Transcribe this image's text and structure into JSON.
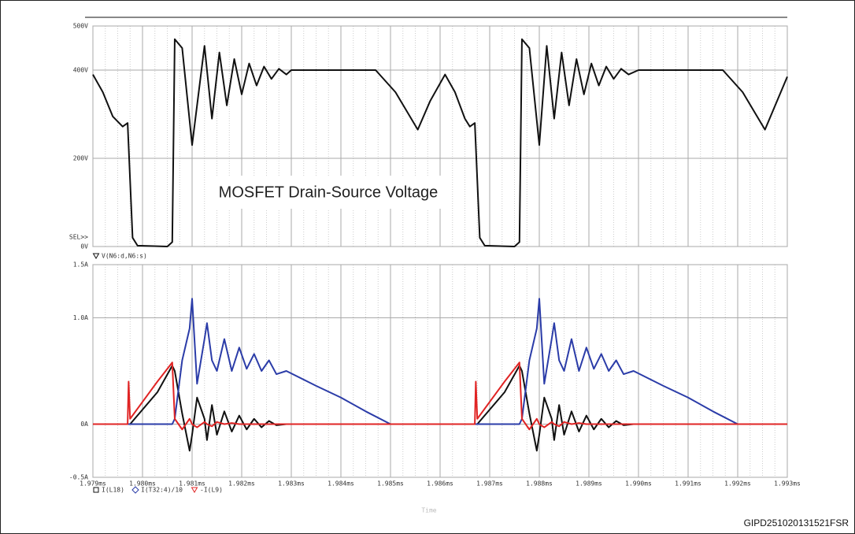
{
  "chart_data": [
    {
      "type": "line",
      "x": [
        1.979,
        1.9792,
        1.9794,
        1.9796,
        1.9797,
        1.97975,
        1.9798,
        1.9799,
        1.9805,
        1.9806,
        1.98065,
        1.9808,
        1.981,
        1.98125,
        1.9814,
        1.98155,
        1.9817,
        1.98185,
        1.982,
        1.98215,
        1.9823,
        1.98245,
        1.9826,
        1.98275,
        1.9829,
        1.983,
        1.9847,
        1.9851,
        1.98555,
        1.9858,
        1.9861,
        1.9863,
        1.9865,
        1.9866,
        1.9867,
        1.98675,
        1.9868,
        1.9869,
        1.9875,
        1.9876,
        1.98765,
        1.9878,
        1.988,
        1.98815,
        1.9883,
        1.98845,
        1.9886,
        1.98875,
        1.9889,
        1.98905,
        1.9892,
        1.98935,
        1.9895,
        1.98965,
        1.9898,
        1.99,
        1.9917,
        1.9921,
        1.99255,
        1.993
      ],
      "series": [
        {
          "name": "V(N6:d,N6:s)",
          "color": "#111111",
          "marker": "triangle",
          "values": [
            390,
            350,
            295,
            272,
            280,
            150,
            20,
            2,
            0,
            10,
            470,
            450,
            230,
            455,
            290,
            440,
            320,
            425,
            345,
            415,
            365,
            408,
            380,
            403,
            390,
            400,
            400,
            350,
            265,
            330,
            390,
            350,
            290,
            272,
            280,
            150,
            20,
            2,
            0,
            10,
            470,
            450,
            230,
            455,
            290,
            440,
            320,
            425,
            345,
            415,
            365,
            408,
            380,
            403,
            390,
            400,
            400,
            350,
            265,
            385
          ]
        }
      ],
      "xlim": [
        1.979,
        1.993
      ],
      "ylim": [
        0,
        500
      ],
      "yticks": [
        {
          "value": 0,
          "label": "0V"
        },
        {
          "value": 200,
          "label": "200V"
        },
        {
          "value": 400,
          "label": "400V"
        },
        {
          "value": 500,
          "label": "500V"
        }
      ],
      "grid": true,
      "annotation": "MOSFET  Drain-Source Voltage",
      "cursor_label": "SEL>>"
    },
    {
      "type": "line",
      "x": [
        1.979,
        1.9797,
        1.97972,
        1.97975,
        1.9803,
        1.9806,
        1.98065,
        1.9808,
        1.98095,
        1.981,
        1.9811,
        1.98125,
        1.9813,
        1.9814,
        1.9815,
        1.98165,
        1.9818,
        1.98195,
        1.9821,
        1.98225,
        1.9824,
        1.98255,
        1.9827,
        1.9829,
        1.9835,
        1.984,
        1.9845,
        1.985,
        1.986,
        1.9867,
        1.98672,
        1.98675,
        1.9873,
        1.9876,
        1.98765,
        1.9878,
        1.98795,
        1.988,
        1.9881,
        1.98825,
        1.9883,
        1.9884,
        1.9885,
        1.98865,
        1.9888,
        1.98895,
        1.9891,
        1.98925,
        1.9894,
        1.98955,
        1.9897,
        1.9899,
        1.9905,
        1.991,
        1.9915,
        1.992,
        1.993
      ],
      "series": [
        {
          "name": "I(L18)",
          "color": "#111111",
          "marker": "square",
          "values": [
            0,
            0,
            0,
            0,
            0.3,
            0.55,
            0.5,
            0.1,
            -0.25,
            -0.1,
            0.25,
            0.05,
            -0.15,
            0.18,
            -0.1,
            0.12,
            -0.07,
            0.08,
            -0.05,
            0.05,
            -0.03,
            0.03,
            -0.01,
            0,
            0,
            0,
            0,
            0,
            0,
            0,
            0,
            0,
            0.3,
            0.55,
            0.5,
            0.1,
            -0.25,
            -0.1,
            0.25,
            0.05,
            -0.15,
            0.18,
            -0.1,
            0.12,
            -0.07,
            0.08,
            -0.05,
            0.05,
            -0.03,
            0.03,
            -0.01,
            0,
            0,
            0,
            0,
            0,
            0
          ]
        },
        {
          "name": "I(T32:4)/10",
          "color": "#2b3ca8",
          "marker": "diamond",
          "values": [
            0,
            0,
            0,
            0,
            0,
            0,
            0.05,
            0.6,
            0.9,
            1.18,
            0.38,
            0.8,
            0.95,
            0.6,
            0.5,
            0.8,
            0.5,
            0.72,
            0.52,
            0.66,
            0.5,
            0.6,
            0.47,
            0.5,
            0.36,
            0.25,
            0.12,
            0,
            0,
            0,
            0,
            0,
            0,
            0,
            0.05,
            0.6,
            0.9,
            1.18,
            0.38,
            0.8,
            0.95,
            0.6,
            0.5,
            0.8,
            0.5,
            0.72,
            0.52,
            0.66,
            0.5,
            0.6,
            0.47,
            0.5,
            0.36,
            0.25,
            0.12,
            0,
            0
          ]
        },
        {
          "name": "-I(L9)",
          "color": "#e02424",
          "marker": "triangle",
          "values": [
            0,
            0,
            0.4,
            0.05,
            0.4,
            0.58,
            0.05,
            -0.05,
            0.05,
            0,
            -0.03,
            0.02,
            0,
            -0.02,
            0.02,
            0,
            0.01,
            0,
            0,
            0,
            0,
            0,
            0,
            0,
            0,
            0,
            0,
            0,
            0,
            0,
            0.4,
            0.05,
            0.4,
            0.58,
            0.05,
            -0.05,
            0.05,
            0,
            -0.03,
            0.02,
            0,
            -0.02,
            0.02,
            0,
            0.01,
            0,
            0,
            0,
            0,
            0,
            0,
            0,
            0,
            0,
            0,
            0,
            0
          ]
        }
      ],
      "xlim": [
        1.979,
        1.993
      ],
      "xticks": [
        {
          "value": 1.979,
          "label": "1.979ms"
        },
        {
          "value": 1.98,
          "label": "1.980ms"
        },
        {
          "value": 1.981,
          "label": "1.981ms"
        },
        {
          "value": 1.982,
          "label": "1.982ms"
        },
        {
          "value": 1.983,
          "label": "1.983ms"
        },
        {
          "value": 1.984,
          "label": "1.984ms"
        },
        {
          "value": 1.985,
          "label": "1.985ms"
        },
        {
          "value": 1.986,
          "label": "1.986ms"
        },
        {
          "value": 1.987,
          "label": "1.987ms"
        },
        {
          "value": 1.988,
          "label": "1.988ms"
        },
        {
          "value": 1.989,
          "label": "1.989ms"
        },
        {
          "value": 1.99,
          "label": "1.990ms"
        },
        {
          "value": 1.991,
          "label": "1.991ms"
        },
        {
          "value": 1.992,
          "label": "1.992ms"
        },
        {
          "value": 1.993,
          "label": "1.993ms"
        }
      ],
      "ylim": [
        -0.5,
        1.5
      ],
      "yticks": [
        {
          "value": -0.5,
          "label": "-0.5A"
        },
        {
          "value": 0,
          "label": "0A"
        },
        {
          "value": 1,
          "label": "1.0A"
        },
        {
          "value": 1.5,
          "label": "1.5A"
        }
      ],
      "grid": true,
      "x_label": "Time"
    }
  ],
  "figure_id": "GIPD251020131521FSR"
}
